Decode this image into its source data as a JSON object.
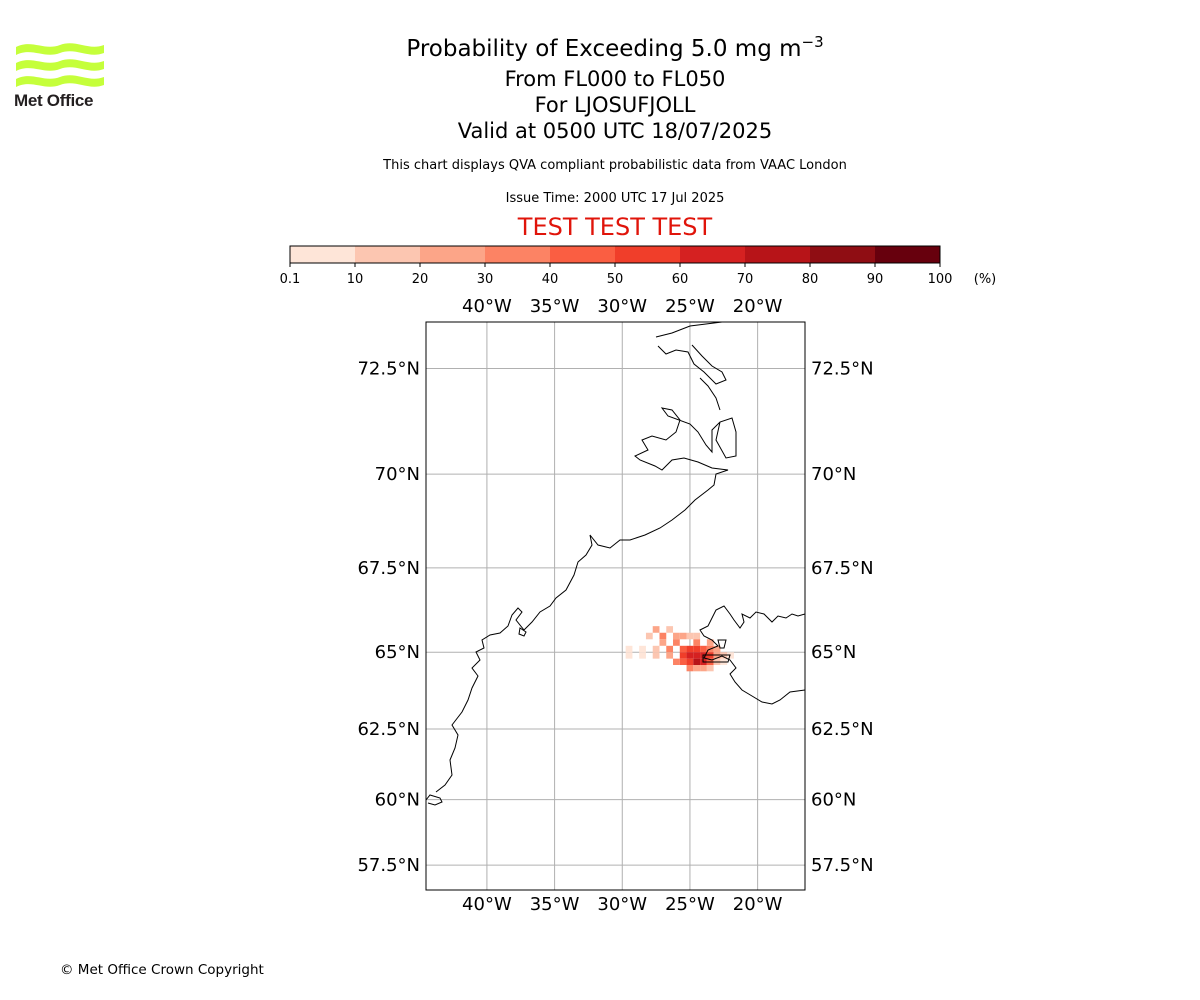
{
  "branding": {
    "org_name": "Met Office",
    "logo_color": "#c5ff3b",
    "text_color": "#231f20"
  },
  "title": {
    "main_prefix": "Probability of Exceeding 5.0 mg m",
    "main_superscript": "−3",
    "levels": "From FL000 to FL050",
    "location": "For LJOSUFJOLL",
    "valid": "Valid at 0500 UTC 18/07/2025"
  },
  "description": "This chart displays QVA compliant probabilistic data from VAAC London",
  "issue_time": "Issue Time: 2000 UTC 17 Jul 2025",
  "test_banner": {
    "text": "TEST TEST TEST",
    "color": "#e0140a"
  },
  "colorbar": {
    "tick_labels": [
      "0.1",
      "10",
      "20",
      "30",
      "40",
      "50",
      "60",
      "70",
      "80",
      "90",
      "100"
    ],
    "unit": "(%)",
    "colors": [
      "#fee5d8",
      "#fcc6b1",
      "#fca588",
      "#fc8364",
      "#fa5e42",
      "#f03e2a",
      "#d52121",
      "#b71418",
      "#8f0d13",
      "#67000d"
    ]
  },
  "map": {
    "lon_range": [
      -44.5,
      -16.5
    ],
    "lat_range": [
      56.5,
      73.5
    ],
    "lon_ticks": [
      -40,
      -35,
      -30,
      -25,
      -20
    ],
    "lat_ticks": [
      57.5,
      60,
      62.5,
      65,
      67.5,
      70,
      72.5
    ],
    "lon_tick_labels": [
      "40°W",
      "35°W",
      "30°W",
      "25°W",
      "20°W"
    ],
    "lat_tick_labels": [
      "57.5°N",
      "60°N",
      "62.5°N",
      "65°N",
      "67.5°N",
      "70°N",
      "72.5°N"
    ],
    "gridlines": true,
    "coastline_color": "#000000",
    "probability_cells": [
      {
        "lon": -29.5,
        "lat": 65.1,
        "category": 0
      },
      {
        "lon": -29.5,
        "lat": 64.9,
        "category": 0
      },
      {
        "lon": -28.5,
        "lat": 65.1,
        "category": 0
      },
      {
        "lon": -28.5,
        "lat": 64.9,
        "category": 0
      },
      {
        "lon": -28.0,
        "lat": 65.5,
        "category": 1
      },
      {
        "lon": -27.5,
        "lat": 65.7,
        "category": 2
      },
      {
        "lon": -27.5,
        "lat": 65.1,
        "category": 1
      },
      {
        "lon": -27.5,
        "lat": 64.9,
        "category": 1
      },
      {
        "lon": -27.0,
        "lat": 65.5,
        "category": 3
      },
      {
        "lon": -27.0,
        "lat": 65.3,
        "category": 2
      },
      {
        "lon": -26.5,
        "lat": 65.7,
        "category": 1
      },
      {
        "lon": -26.5,
        "lat": 65.1,
        "category": 3
      },
      {
        "lon": -26.5,
        "lat": 64.9,
        "category": 2
      },
      {
        "lon": -26.0,
        "lat": 65.5,
        "category": 2
      },
      {
        "lon": -26.0,
        "lat": 65.3,
        "category": 3
      },
      {
        "lon": -26.0,
        "lat": 64.7,
        "category": 3
      },
      {
        "lon": -25.5,
        "lat": 65.5,
        "category": 2
      },
      {
        "lon": -25.5,
        "lat": 65.1,
        "category": 4
      },
      {
        "lon": -25.5,
        "lat": 64.9,
        "category": 5
      },
      {
        "lon": -25.5,
        "lat": 64.7,
        "category": 4
      },
      {
        "lon": -25.0,
        "lat": 65.5,
        "category": 1
      },
      {
        "lon": -25.0,
        "lat": 65.1,
        "category": 5
      },
      {
        "lon": -25.0,
        "lat": 64.9,
        "category": 6
      },
      {
        "lon": -25.0,
        "lat": 64.7,
        "category": 5
      },
      {
        "lon": -25.0,
        "lat": 64.5,
        "category": 3
      },
      {
        "lon": -24.5,
        "lat": 65.5,
        "category": 1
      },
      {
        "lon": -24.5,
        "lat": 65.3,
        "category": 3
      },
      {
        "lon": -24.5,
        "lat": 65.1,
        "category": 5
      },
      {
        "lon": -24.5,
        "lat": 64.9,
        "category": 6
      },
      {
        "lon": -24.5,
        "lat": 64.7,
        "category": 7
      },
      {
        "lon": -24.5,
        "lat": 64.5,
        "category": 2
      },
      {
        "lon": -24.0,
        "lat": 65.1,
        "category": 4
      },
      {
        "lon": -24.0,
        "lat": 64.9,
        "category": 6
      },
      {
        "lon": -24.0,
        "lat": 64.7,
        "category": 6
      },
      {
        "lon": -24.0,
        "lat": 64.5,
        "category": 2
      },
      {
        "lon": -23.5,
        "lat": 65.3,
        "category": 2
      },
      {
        "lon": -23.5,
        "lat": 65.1,
        "category": 3
      },
      {
        "lon": -23.5,
        "lat": 64.9,
        "category": 5
      },
      {
        "lon": -23.5,
        "lat": 64.7,
        "category": 4
      },
      {
        "lon": -23.5,
        "lat": 64.5,
        "category": 1
      },
      {
        "lon": -23.0,
        "lat": 65.1,
        "category": 2
      },
      {
        "lon": -23.0,
        "lat": 64.9,
        "category": 2
      },
      {
        "lon": -23.0,
        "lat": 64.7,
        "category": 1
      },
      {
        "lon": -22.5,
        "lat": 64.9,
        "category": 1
      },
      {
        "lon": -22.5,
        "lat": 64.7,
        "category": 0
      },
      {
        "lon": -22.0,
        "lat": 64.9,
        "category": 0
      }
    ]
  },
  "copyright": "© Met Office Crown Copyright"
}
